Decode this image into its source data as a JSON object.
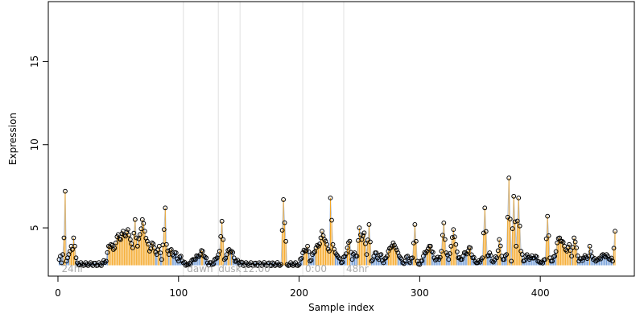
{
  "chart_data": {
    "type": "scatter",
    "title": "",
    "xlabel": "Sample index",
    "ylabel": "Expression",
    "xlim": [
      -8,
      478
    ],
    "ylim": [
      2.1,
      18.6
    ],
    "x_ticks": [
      0,
      100,
      200,
      300,
      400
    ],
    "y_ticks": [
      5,
      10,
      15
    ],
    "grid": false,
    "legend": "none",
    "baseline": 2.75,
    "colors": {
      "stem_high": "#f5a623",
      "stem_low": "#6f9ad6",
      "trend_line": "#b8c6da",
      "point_stroke": "#000000",
      "vline": "#e0e0e0",
      "phase_label": "#aaaaaa"
    },
    "vertical_lines": [
      104,
      133,
      151,
      203,
      237
    ],
    "phase_labels": [
      {
        "x": 3,
        "text": "24hr"
      },
      {
        "x": 107,
        "text": "dawn"
      },
      {
        "x": 133,
        "text": "dusk"
      },
      {
        "x": 153,
        "text": "12:00"
      },
      {
        "x": 205,
        "text": "0:00"
      },
      {
        "x": 239,
        "text": "48hr"
      }
    ],
    "anchors": [
      [
        1,
        3.1
      ],
      [
        2,
        3.3
      ],
      [
        3,
        2.9
      ],
      [
        4,
        3.4
      ],
      [
        5,
        4.4
      ],
      [
        6,
        7.2
      ],
      [
        7,
        3.0
      ],
      [
        8,
        3.2
      ],
      [
        9,
        3.4
      ],
      [
        10,
        3.6
      ],
      [
        11,
        3.9
      ],
      [
        12,
        3.7
      ],
      [
        13,
        4.4
      ],
      [
        14,
        3.9
      ],
      [
        15,
        3.2
      ],
      [
        16,
        2.9
      ],
      [
        20,
        2.8
      ],
      [
        28,
        2.8
      ],
      [
        35,
        2.8
      ],
      [
        40,
        3.0
      ],
      [
        42,
        3.9
      ],
      [
        44,
        4.0
      ],
      [
        46,
        3.7
      ],
      [
        48,
        4.1
      ],
      [
        50,
        4.6
      ],
      [
        52,
        4.3
      ],
      [
        54,
        4.8
      ],
      [
        56,
        4.5
      ],
      [
        58,
        4.9
      ],
      [
        60,
        4.3
      ],
      [
        62,
        3.8
      ],
      [
        64,
        5.5
      ],
      [
        65,
        4.4
      ],
      [
        66,
        3.9
      ],
      [
        68,
        4.6
      ],
      [
        70,
        5.5
      ],
      [
        72,
        4.8
      ],
      [
        74,
        4.2
      ],
      [
        76,
        3.6
      ],
      [
        78,
        4.1
      ],
      [
        80,
        3.8
      ],
      [
        82,
        3.4
      ],
      [
        84,
        3.9
      ],
      [
        86,
        3.1
      ],
      [
        88,
        4.9
      ],
      [
        89,
        6.2
      ],
      [
        90,
        4.0
      ],
      [
        92,
        3.4
      ],
      [
        94,
        3.7
      ],
      [
        96,
        3.3
      ],
      [
        98,
        3.5
      ],
      [
        100,
        3.0
      ],
      [
        102,
        3.3
      ],
      [
        104,
        2.9
      ],
      [
        108,
        2.8
      ],
      [
        112,
        3.1
      ],
      [
        116,
        3.3
      ],
      [
        120,
        3.6
      ],
      [
        124,
        2.9
      ],
      [
        128,
        2.8
      ],
      [
        132,
        3.2
      ],
      [
        134,
        3.6
      ],
      [
        136,
        5.4
      ],
      [
        138,
        3.1
      ],
      [
        140,
        3.4
      ],
      [
        142,
        3.7
      ],
      [
        144,
        3.6
      ],
      [
        146,
        3.2
      ],
      [
        148,
        3.0
      ],
      [
        150,
        2.9
      ],
      [
        155,
        2.8
      ],
      [
        170,
        2.8
      ],
      [
        185,
        2.8
      ],
      [
        187,
        6.7
      ],
      [
        190,
        2.8
      ],
      [
        200,
        2.8
      ],
      [
        203,
        3.5
      ],
      [
        205,
        3.6
      ],
      [
        207,
        3.9
      ],
      [
        209,
        3.0
      ],
      [
        212,
        3.5
      ],
      [
        214,
        3.8
      ],
      [
        216,
        3.9
      ],
      [
        218,
        4.4
      ],
      [
        219,
        4.8
      ],
      [
        221,
        4.3
      ],
      [
        223,
        4.0
      ],
      [
        225,
        3.6
      ],
      [
        226,
        6.8
      ],
      [
        228,
        4.0
      ],
      [
        230,
        3.5
      ],
      [
        232,
        3.3
      ],
      [
        235,
        2.9
      ],
      [
        238,
        3.3
      ],
      [
        240,
        3.8
      ],
      [
        242,
        4.2
      ],
      [
        244,
        3.1
      ],
      [
        246,
        3.5
      ],
      [
        248,
        3.3
      ],
      [
        250,
        5.0
      ],
      [
        252,
        4.3
      ],
      [
        254,
        4.7
      ],
      [
        256,
        3.4
      ],
      [
        258,
        5.2
      ],
      [
        260,
        3.0
      ],
      [
        262,
        3.3
      ],
      [
        264,
        3.5
      ],
      [
        266,
        3.1
      ],
      [
        268,
        3.4
      ],
      [
        270,
        2.9
      ],
      [
        272,
        3.2
      ],
      [
        274,
        3.6
      ],
      [
        276,
        3.8
      ],
      [
        278,
        4.1
      ],
      [
        280,
        3.8
      ],
      [
        282,
        3.5
      ],
      [
        284,
        3.2
      ],
      [
        286,
        2.9
      ],
      [
        288,
        3.0
      ],
      [
        290,
        3.3
      ],
      [
        292,
        2.9
      ],
      [
        294,
        3.2
      ],
      [
        296,
        5.2
      ],
      [
        298,
        3.0
      ],
      [
        300,
        2.8
      ],
      [
        303,
        3.3
      ],
      [
        306,
        3.6
      ],
      [
        309,
        3.9
      ],
      [
        312,
        3.2
      ],
      [
        316,
        3.1
      ],
      [
        318,
        3.6
      ],
      [
        320,
        5.3
      ],
      [
        322,
        3.5
      ],
      [
        324,
        3.1
      ],
      [
        326,
        3.9
      ],
      [
        328,
        4.9
      ],
      [
        330,
        4.0
      ],
      [
        332,
        3.2
      ],
      [
        334,
        3.1
      ],
      [
        336,
        3.3
      ],
      [
        338,
        3.5
      ],
      [
        340,
        3.6
      ],
      [
        342,
        3.8
      ],
      [
        344,
        3.2
      ],
      [
        348,
        2.9
      ],
      [
        352,
        3.2
      ],
      [
        354,
        6.2
      ],
      [
        356,
        3.3
      ],
      [
        358,
        3.5
      ],
      [
        360,
        3.0
      ],
      [
        364,
        3.2
      ],
      [
        366,
        4.3
      ],
      [
        368,
        3.3
      ],
      [
        370,
        3.1
      ],
      [
        372,
        3.4
      ],
      [
        374,
        8.0
      ],
      [
        376,
        3.0
      ],
      [
        378,
        6.9
      ],
      [
        380,
        3.9
      ],
      [
        382,
        6.8
      ],
      [
        384,
        3.6
      ],
      [
        386,
        3.0
      ],
      [
        388,
        3.3
      ],
      [
        392,
        3.2
      ],
      [
        396,
        3.3
      ],
      [
        400,
        2.9
      ],
      [
        404,
        3.1
      ],
      [
        406,
        5.7
      ],
      [
        408,
        3.2
      ],
      [
        410,
        3.0
      ],
      [
        412,
        3.3
      ],
      [
        414,
        4.1
      ],
      [
        416,
        4.4
      ],
      [
        418,
        4.2
      ],
      [
        420,
        3.9
      ],
      [
        422,
        3.6
      ],
      [
        424,
        4.0
      ],
      [
        426,
        3.3
      ],
      [
        428,
        4.4
      ],
      [
        430,
        3.8
      ],
      [
        432,
        3.0
      ],
      [
        436,
        3.2
      ],
      [
        440,
        3.3
      ],
      [
        441,
        3.9
      ],
      [
        444,
        3.1
      ],
      [
        448,
        3.1
      ],
      [
        452,
        3.4
      ],
      [
        456,
        3.3
      ],
      [
        460,
        3.0
      ],
      [
        462,
        4.8
      ]
    ]
  }
}
